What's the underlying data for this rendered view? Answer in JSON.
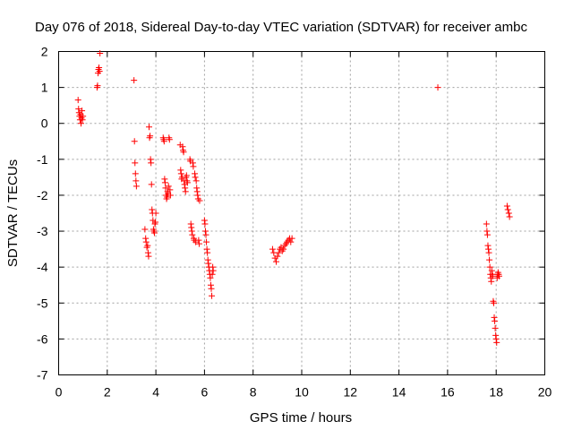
{
  "chart_data": {
    "type": "scatter",
    "title": "Day 076 of 2018, Sidereal Day-to-day VTEC variation (SDTVAR) for receiver ambc",
    "xlabel": "GPS time / hours",
    "ylabel": "SDTVAR / TECUs",
    "xlim": [
      0,
      20
    ],
    "ylim": [
      -7,
      2
    ],
    "xticks": [
      0,
      2,
      4,
      6,
      8,
      10,
      12,
      14,
      16,
      18,
      20
    ],
    "yticks": [
      -7,
      -6,
      -5,
      -4,
      -3,
      -2,
      -1,
      0,
      1,
      2
    ],
    "xtick_labels": [
      "0",
      "2",
      "4",
      "6",
      "8",
      "10",
      "12",
      "14",
      "16",
      "18",
      "20"
    ],
    "ytick_labels": [
      "-7",
      "-6",
      "-5",
      "-4",
      "-3",
      "-2",
      "-1",
      "0",
      "1",
      "2"
    ],
    "grid": true,
    "marker": "+",
    "color": "#ff0000",
    "series": [
      {
        "name": "SDTVAR",
        "points": [
          [
            0.8,
            0.65
          ],
          [
            0.82,
            0.4
          ],
          [
            0.84,
            0.3
          ],
          [
            0.86,
            0.2
          ],
          [
            0.88,
            0.1
          ],
          [
            0.9,
            0.25
          ],
          [
            0.92,
            0.0
          ],
          [
            0.94,
            0.15
          ],
          [
            0.96,
            0.35
          ],
          [
            0.98,
            0.1
          ],
          [
            1.0,
            0.2
          ],
          [
            1.58,
            1.0
          ],
          [
            1.6,
            1.05
          ],
          [
            1.62,
            1.4
          ],
          [
            1.64,
            1.5
          ],
          [
            1.66,
            1.55
          ],
          [
            1.68,
            1.45
          ],
          [
            1.7,
            1.95
          ],
          [
            3.1,
            1.2
          ],
          [
            3.12,
            -0.5
          ],
          [
            3.14,
            -1.1
          ],
          [
            3.16,
            -1.4
          ],
          [
            3.18,
            -1.6
          ],
          [
            3.2,
            -1.75
          ],
          [
            3.55,
            -2.95
          ],
          [
            3.58,
            -3.2
          ],
          [
            3.6,
            -3.3
          ],
          [
            3.63,
            -3.45
          ],
          [
            3.66,
            -3.4
          ],
          [
            3.68,
            -3.6
          ],
          [
            3.7,
            -3.7
          ],
          [
            3.72,
            -0.1
          ],
          [
            3.74,
            -0.4
          ],
          [
            3.76,
            -0.35
          ],
          [
            3.78,
            -1.0
          ],
          [
            3.8,
            -1.1
          ],
          [
            3.82,
            -1.7
          ],
          [
            3.84,
            -2.4
          ],
          [
            3.86,
            -2.5
          ],
          [
            3.88,
            -2.7
          ],
          [
            3.9,
            -2.95
          ],
          [
            3.92,
            -3.0
          ],
          [
            3.94,
            -3.05
          ],
          [
            3.96,
            -2.8
          ],
          [
            3.98,
            -2.75
          ],
          [
            4.0,
            -2.5
          ],
          [
            4.3,
            -0.4
          ],
          [
            4.32,
            -0.45
          ],
          [
            4.34,
            -0.5
          ],
          [
            4.36,
            -1.55
          ],
          [
            4.38,
            -1.65
          ],
          [
            4.4,
            -1.8
          ],
          [
            4.42,
            -2.0
          ],
          [
            4.44,
            -2.1
          ],
          [
            4.46,
            -2.05
          ],
          [
            4.48,
            -1.9
          ],
          [
            4.5,
            -1.95
          ],
          [
            4.52,
            -1.75
          ],
          [
            4.54,
            -0.4
          ],
          [
            4.56,
            -0.45
          ],
          [
            4.58,
            -1.85
          ],
          [
            4.6,
            -2.0
          ],
          [
            5.0,
            -0.6
          ],
          [
            5.02,
            -1.3
          ],
          [
            5.04,
            -1.4
          ],
          [
            5.06,
            -1.55
          ],
          [
            5.08,
            -1.5
          ],
          [
            5.1,
            -0.65
          ],
          [
            5.12,
            -0.75
          ],
          [
            5.14,
            -0.8
          ],
          [
            5.16,
            -1.6
          ],
          [
            5.18,
            -1.7
          ],
          [
            5.2,
            -1.8
          ],
          [
            5.22,
            -1.9
          ],
          [
            5.24,
            -1.5
          ],
          [
            5.26,
            -1.45
          ],
          [
            5.28,
            -1.6
          ],
          [
            5.3,
            -1.65
          ],
          [
            5.4,
            -1.0
          ],
          [
            5.42,
            -1.05
          ],
          [
            5.44,
            -2.8
          ],
          [
            5.46,
            -2.9
          ],
          [
            5.48,
            -3.0
          ],
          [
            5.5,
            -3.1
          ],
          [
            5.52,
            -1.1
          ],
          [
            5.54,
            -1.2
          ],
          [
            5.56,
            -3.2
          ],
          [
            5.58,
            -3.25
          ],
          [
            5.6,
            -1.4
          ],
          [
            5.62,
            -1.5
          ],
          [
            5.64,
            -3.3
          ],
          [
            5.66,
            -1.6
          ],
          [
            5.68,
            -1.8
          ],
          [
            5.7,
            -1.9
          ],
          [
            5.72,
            -2.0
          ],
          [
            5.74,
            -2.1
          ],
          [
            5.76,
            -3.25
          ],
          [
            5.78,
            -3.35
          ],
          [
            5.8,
            -2.15
          ],
          [
            6.0,
            -2.7
          ],
          [
            6.02,
            -2.8
          ],
          [
            6.04,
            -3.0
          ],
          [
            6.06,
            -3.1
          ],
          [
            6.08,
            -3.3
          ],
          [
            6.1,
            -3.5
          ],
          [
            6.12,
            -3.6
          ],
          [
            6.14,
            -3.8
          ],
          [
            6.16,
            -3.9
          ],
          [
            6.18,
            -4.0
          ],
          [
            6.2,
            -4.1
          ],
          [
            6.22,
            -4.2
          ],
          [
            6.24,
            -4.3
          ],
          [
            6.26,
            -4.5
          ],
          [
            6.28,
            -4.6
          ],
          [
            6.3,
            -4.8
          ],
          [
            6.32,
            -4.2
          ],
          [
            6.34,
            -4.0
          ],
          [
            6.36,
            -4.1
          ],
          [
            8.8,
            -3.5
          ],
          [
            8.85,
            -3.6
          ],
          [
            8.9,
            -3.75
          ],
          [
            8.95,
            -3.85
          ],
          [
            9.0,
            -3.7
          ],
          [
            9.05,
            -3.6
          ],
          [
            9.1,
            -3.5
          ],
          [
            9.15,
            -3.45
          ],
          [
            9.2,
            -3.55
          ],
          [
            9.25,
            -3.5
          ],
          [
            9.3,
            -3.4
          ],
          [
            9.35,
            -3.35
          ],
          [
            9.4,
            -3.3
          ],
          [
            9.45,
            -3.25
          ],
          [
            9.5,
            -3.2
          ],
          [
            9.55,
            -3.3
          ],
          [
            9.6,
            -3.2
          ],
          [
            15.6,
            1.0
          ],
          [
            17.6,
            -2.8
          ],
          [
            17.62,
            -3.0
          ],
          [
            17.64,
            -3.1
          ],
          [
            17.66,
            -3.4
          ],
          [
            17.68,
            -3.5
          ],
          [
            17.7,
            -3.6
          ],
          [
            17.72,
            -3.8
          ],
          [
            17.74,
            -4.0
          ],
          [
            17.76,
            -4.2
          ],
          [
            17.78,
            -4.3
          ],
          [
            17.8,
            -4.4
          ],
          [
            17.82,
            -4.1
          ],
          [
            17.84,
            -4.2
          ],
          [
            17.86,
            -4.25
          ],
          [
            17.88,
            -4.95
          ],
          [
            17.9,
            -5.0
          ],
          [
            17.92,
            -5.4
          ],
          [
            17.94,
            -5.5
          ],
          [
            17.96,
            -5.7
          ],
          [
            17.98,
            -5.9
          ],
          [
            18.0,
            -6.0
          ],
          [
            18.02,
            -6.1
          ],
          [
            18.04,
            -4.3
          ],
          [
            18.06,
            -4.2
          ],
          [
            18.08,
            -4.15
          ],
          [
            18.1,
            -4.2
          ],
          [
            18.12,
            -4.25
          ],
          [
            18.45,
            -2.3
          ],
          [
            18.48,
            -2.4
          ],
          [
            18.52,
            -2.5
          ],
          [
            18.55,
            -2.6
          ]
        ]
      }
    ]
  }
}
